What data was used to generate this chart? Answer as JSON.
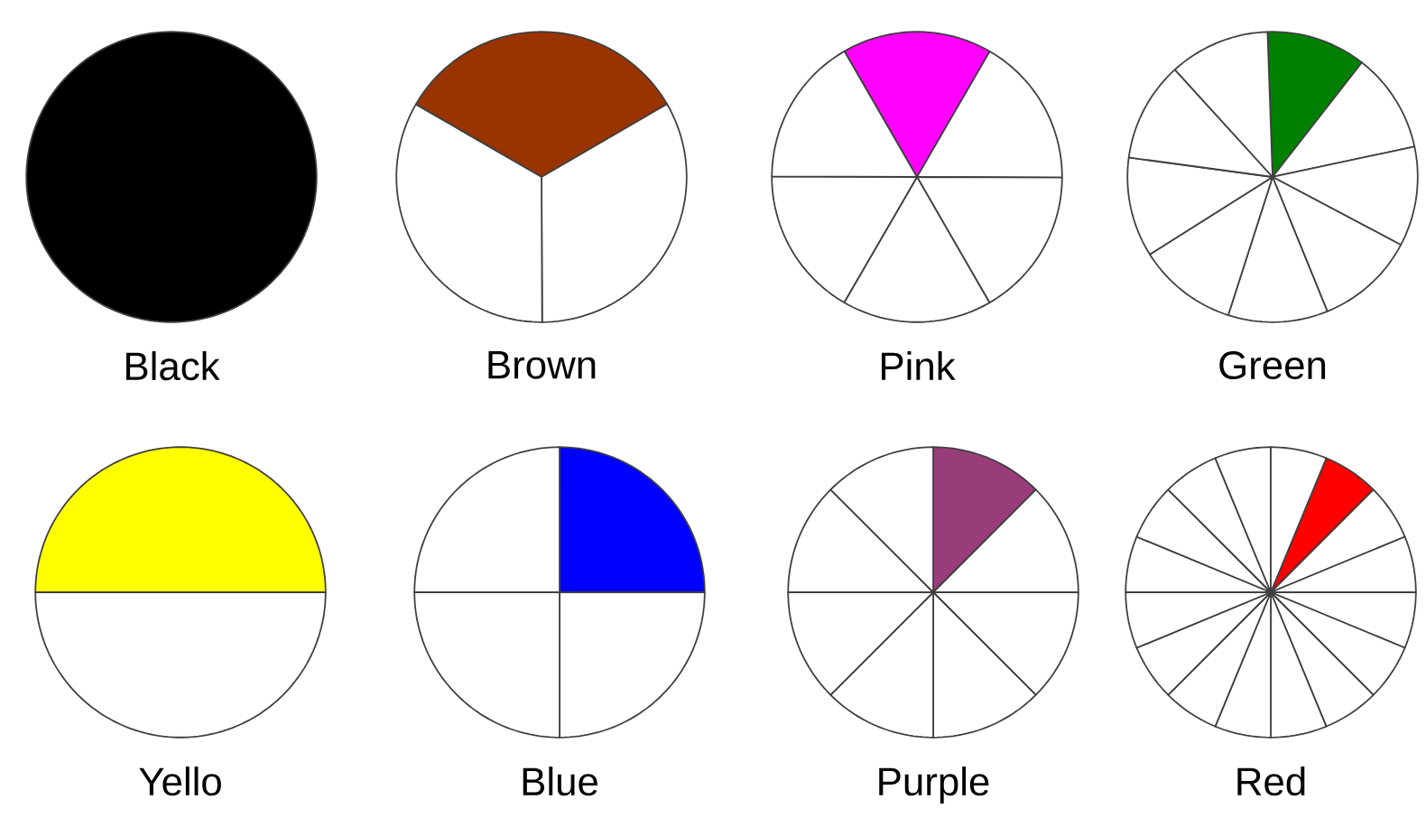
{
  "chart_data": [
    {
      "type": "pie",
      "title": "Black",
      "categories": [
        null
      ],
      "values": [
        100
      ],
      "colors": [
        "#000000"
      ]
    },
    {
      "type": "pie",
      "title": "Brown",
      "categories": [
        null,
        null,
        null
      ],
      "values": [
        33.3,
        33.3,
        33.4
      ],
      "colors": [
        "#993300",
        "#ffffff",
        "#ffffff"
      ]
    },
    {
      "type": "pie",
      "title": "Pink",
      "categories": [
        null,
        null,
        null,
        null,
        null,
        null
      ],
      "values": [
        16.7,
        16.7,
        16.6,
        16.7,
        16.7,
        16.6
      ],
      "colors": [
        "#ff00ff",
        "#ffffff",
        "#ffffff",
        "#ffffff",
        "#ffffff",
        "#ffffff"
      ]
    },
    {
      "type": "pie",
      "title": "Green",
      "categories": [
        null,
        null,
        null,
        null,
        null,
        null,
        null,
        null,
        null
      ],
      "values": [
        11.1,
        11.1,
        11.1,
        11.1,
        11.1,
        11.1,
        11.1,
        11.1,
        11.2
      ],
      "colors": [
        "#008000",
        "#ffffff",
        "#ffffff",
        "#ffffff",
        "#ffffff",
        "#ffffff",
        "#ffffff",
        "#ffffff",
        "#ffffff"
      ]
    },
    {
      "type": "pie",
      "title": "Yello",
      "categories": [
        null,
        null
      ],
      "values": [
        50,
        50
      ],
      "colors": [
        "#ffff00",
        "#ffffff"
      ]
    },
    {
      "type": "pie",
      "title": "Blue",
      "categories": [
        null,
        null,
        null,
        null
      ],
      "values": [
        25,
        25,
        25,
        25
      ],
      "colors": [
        "#0000ff",
        "#ffffff",
        "#ffffff",
        "#ffffff"
      ]
    },
    {
      "type": "pie",
      "title": "Purple",
      "categories": [
        null,
        null,
        null,
        null,
        null,
        null,
        null,
        null
      ],
      "values": [
        12.5,
        12.5,
        12.5,
        12.5,
        12.5,
        12.5,
        12.5,
        12.5
      ],
      "colors": [
        "#993d7a",
        "#ffffff",
        "#ffffff",
        "#ffffff",
        "#ffffff",
        "#ffffff",
        "#ffffff",
        "#ffffff"
      ]
    },
    {
      "type": "pie",
      "title": "Red",
      "categories": [
        null,
        null,
        null,
        null,
        null,
        null,
        null,
        null,
        null,
        null,
        null,
        null,
        null,
        null,
        null,
        null
      ],
      "values": [
        6.25,
        6.25,
        6.25,
        6.25,
        6.25,
        6.25,
        6.25,
        6.25,
        6.25,
        6.25,
        6.25,
        6.25,
        6.25,
        6.25,
        6.25,
        6.25
      ],
      "colors": [
        "#ff0000",
        "#ffffff",
        "#ffffff",
        "#ffffff",
        "#ffffff",
        "#ffffff",
        "#ffffff",
        "#ffffff",
        "#ffffff",
        "#ffffff",
        "#ffffff",
        "#ffffff",
        "#ffffff",
        "#ffffff",
        "#ffffff",
        "#ffffff"
      ]
    }
  ]
}
